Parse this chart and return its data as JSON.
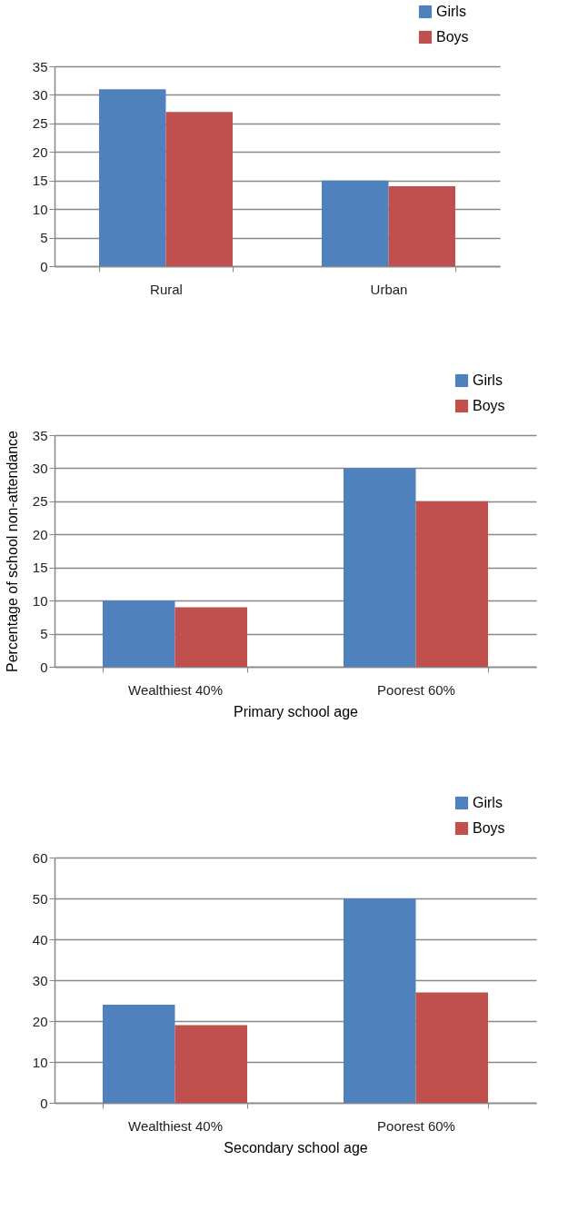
{
  "chart_data": [
    {
      "type": "bar",
      "categories": [
        "Rural",
        "Urban"
      ],
      "series": [
        {
          "name": "Girls",
          "color": "#4f81bd",
          "values": [
            31,
            15
          ]
        },
        {
          "name": "Boys",
          "color": "#c0504d",
          "values": [
            27,
            14
          ]
        }
      ],
      "ylim": [
        0,
        35
      ],
      "yticks": [
        0,
        5,
        10,
        15,
        20,
        25,
        30,
        35
      ],
      "grid": "y",
      "legend": "top right"
    },
    {
      "type": "bar",
      "categories": [
        "Wealthiest 40%",
        "Poorest 60%"
      ],
      "xlabel": "Primary school age",
      "ylabel": "Percentage of school non-attendance",
      "series": [
        {
          "name": "Girls",
          "color": "#4f81bd",
          "values": [
            10,
            30
          ]
        },
        {
          "name": "Boys",
          "color": "#c0504d",
          "values": [
            9,
            25
          ]
        }
      ],
      "ylim": [
        0,
        35
      ],
      "yticks": [
        0,
        5,
        10,
        15,
        20,
        25,
        30,
        35
      ],
      "grid": "y",
      "legend": "top right"
    },
    {
      "type": "bar",
      "categories": [
        "Wealthiest 40%",
        "Poorest 60%"
      ],
      "xlabel": "Secondary school age",
      "series": [
        {
          "name": "Girls",
          "color": "#4f81bd",
          "values": [
            24,
            50
          ]
        },
        {
          "name": "Boys",
          "color": "#c0504d",
          "values": [
            19,
            27
          ]
        }
      ],
      "ylim": [
        0,
        60
      ],
      "yticks": [
        0,
        10,
        20,
        30,
        40,
        50,
        60
      ],
      "grid": "y",
      "legend": "top right"
    }
  ]
}
